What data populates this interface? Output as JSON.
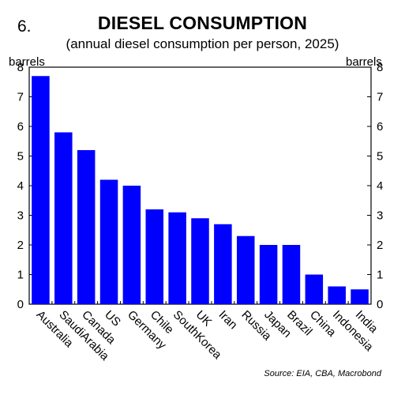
{
  "figure_number": "6.",
  "chart_data": {
    "type": "bar",
    "title": "DIESEL CONSUMPTION",
    "subtitle": "(annual diesel consumption per person, 2025)",
    "y_unit_left": "barrels",
    "y_unit_right": "barrels",
    "categories": [
      "Australia",
      "SaudiArabia",
      "Canada",
      "US",
      "Germany",
      "Chile",
      "SouthKorea",
      "UK",
      "Iran",
      "Russia",
      "Japan",
      "Brazil",
      "China",
      "Indonesia",
      "India"
    ],
    "values": [
      7.7,
      5.8,
      5.2,
      4.2,
      4.0,
      3.2,
      3.1,
      2.9,
      2.7,
      2.3,
      2.0,
      2.0,
      1.0,
      0.6,
      0.5
    ],
    "ylim": [
      0,
      8
    ],
    "yticks": [
      0,
      1,
      2,
      3,
      4,
      5,
      6,
      7,
      8
    ],
    "grid": false,
    "bar_color": "#0000ff",
    "source": "Source: EIA, CBA, Macrobond"
  }
}
